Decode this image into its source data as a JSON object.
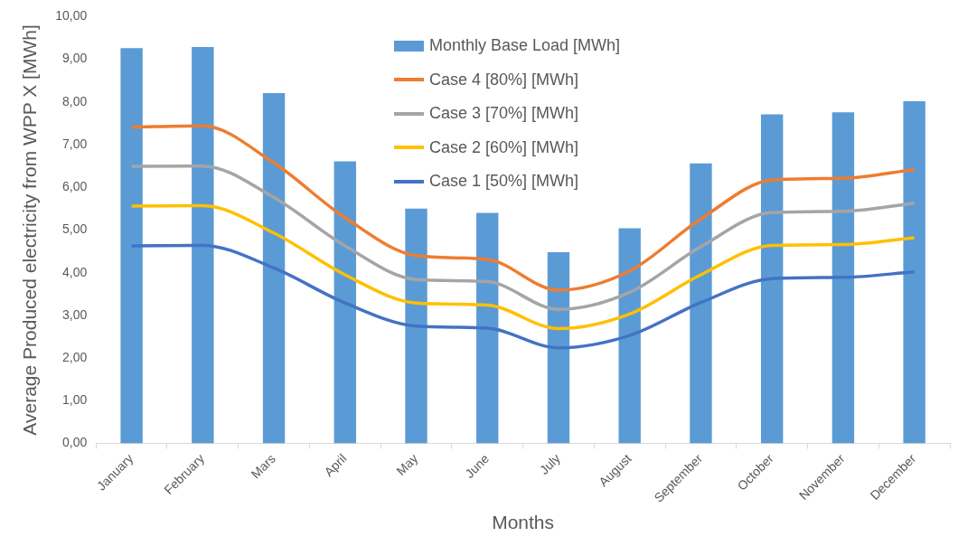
{
  "chart_data": {
    "type": "bar",
    "xlabel": "Months",
    "ylabel": "Average Produced electricity from WPP X [MWh]",
    "categories": [
      "January",
      "February",
      "Mars",
      "April",
      "May",
      "June",
      "July",
      "August",
      "September",
      "October",
      "November",
      "December"
    ],
    "series": [
      {
        "name": "Monthly Base Load [MWh]",
        "color": "#5b9bd5",
        "values": [
          9.26,
          9.29,
          8.21,
          6.61,
          5.5,
          5.4,
          4.48,
          5.04,
          6.56,
          7.71,
          7.76,
          8.02
        ]
      },
      {
        "name": "Case 4 [80%] [MWh]",
        "type": "line",
        "color": "#ed7d31",
        "values": [
          7.41,
          7.44,
          6.57,
          5.29,
          4.4,
          4.31,
          3.59,
          4.04,
          5.26,
          6.17,
          6.21,
          6.42
        ]
      },
      {
        "name": "Case 3 [70%] [MWh]",
        "type": "line",
        "color": "#a5a5a5",
        "values": [
          6.49,
          6.5,
          5.76,
          4.63,
          3.84,
          3.79,
          3.14,
          3.54,
          4.61,
          5.41,
          5.44,
          5.63
        ]
      },
      {
        "name": "Case 2 [60%] [MWh]",
        "type": "line",
        "color": "#ffc000",
        "values": [
          5.56,
          5.57,
          4.93,
          3.95,
          3.29,
          3.24,
          2.69,
          3.03,
          3.95,
          4.64,
          4.66,
          4.82
        ]
      },
      {
        "name": "Case 1 [50%] [MWh]",
        "type": "line",
        "color": "#4472c4",
        "values": [
          4.63,
          4.64,
          4.11,
          3.29,
          2.75,
          2.7,
          2.24,
          2.53,
          3.3,
          3.86,
          3.89,
          4.02
        ]
      }
    ],
    "ylim": [
      0,
      10
    ],
    "yticks": [
      {
        "value": 0,
        "label": "0,00"
      },
      {
        "value": 1,
        "label": "1,00"
      },
      {
        "value": 2,
        "label": "2,00"
      },
      {
        "value": 3,
        "label": "3,00"
      },
      {
        "value": 4,
        "label": "4,00"
      },
      {
        "value": 5,
        "label": "5,00"
      },
      {
        "value": 6,
        "label": "6,00"
      },
      {
        "value": 7,
        "label": "7,00"
      },
      {
        "value": 8,
        "label": "8,00"
      },
      {
        "value": 9,
        "label": "9,00"
      },
      {
        "value": 10,
        "label": "10,00"
      }
    ],
    "grid": false,
    "legend": "top",
    "marker": "none",
    "line_style": "solid"
  }
}
